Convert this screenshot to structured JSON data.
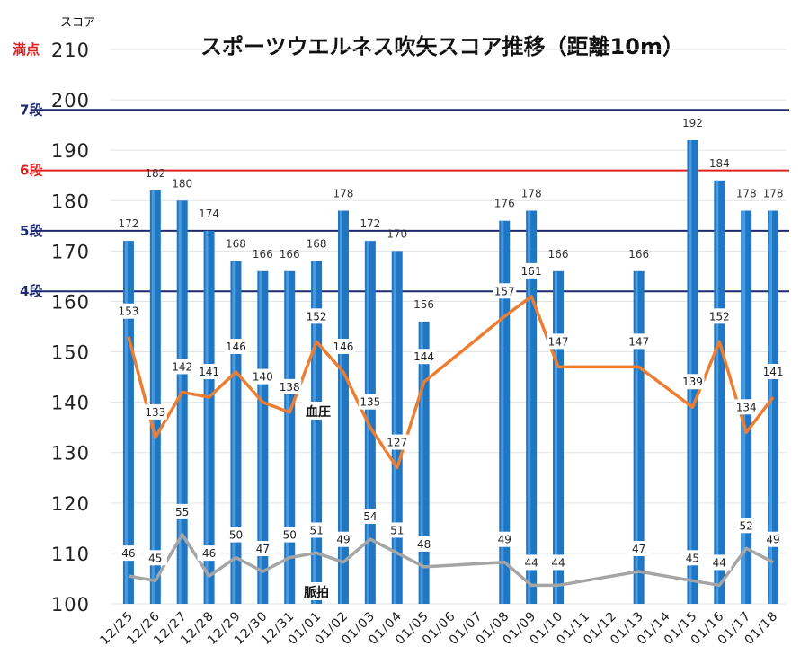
{
  "chart_data": {
    "type": "bar",
    "title": "スポーツウエルネス吹矢スコア推移（距離10m）",
    "ylabel": "スコア",
    "ylim": [
      100,
      210
    ],
    "yticks": [
      100,
      110,
      120,
      130,
      140,
      150,
      160,
      170,
      180,
      190,
      200,
      210
    ],
    "max_label": "満点",
    "categories": [
      "12/25",
      "12/26",
      "12/27",
      "12/28",
      "12/29",
      "12/30",
      "12/31",
      "01/01",
      "01/02",
      "01/03",
      "01/04",
      "01/05",
      "01/06",
      "01/07",
      "01/08",
      "01/09",
      "01/10",
      "01/11",
      "01/12",
      "01/13",
      "01/14",
      "01/15",
      "01/16",
      "01/17",
      "01/18"
    ],
    "series": [
      {
        "type": "bar",
        "color": "#1f77c4",
        "values": [
          172,
          182,
          180,
          174,
          168,
          166,
          166,
          168,
          178,
          172,
          170,
          156,
          null,
          null,
          176,
          178,
          166,
          null,
          null,
          166,
          null,
          192,
          184,
          178,
          178
        ]
      },
      {
        "type": "line",
        "name": "血圧",
        "color": "#ed7d31",
        "values": [
          153,
          133,
          142,
          141,
          146,
          140,
          138,
          152,
          146,
          135,
          127,
          144,
          null,
          null,
          157,
          161,
          147,
          null,
          null,
          147,
          null,
          139,
          152,
          134,
          141
        ]
      },
      {
        "type": "line",
        "name": "脈拍",
        "color": "#a5a5a5",
        "values": [
          46,
          45,
          55,
          46,
          50,
          47,
          50,
          51,
          49,
          54,
          51,
          48,
          null,
          null,
          49,
          44,
          44,
          null,
          null,
          47,
          null,
          45,
          44,
          52,
          49
        ]
      }
    ],
    "reference_lines": [
      {
        "label": "7段",
        "value": 198,
        "color": "#1f2a6e"
      },
      {
        "label": "6段",
        "value": 186,
        "color": "#e02020"
      },
      {
        "label": "5段",
        "value": 174,
        "color": "#1f2a6e"
      },
      {
        "label": "4段",
        "value": 162,
        "color": "#1f2a6e"
      }
    ],
    "grid": true
  }
}
